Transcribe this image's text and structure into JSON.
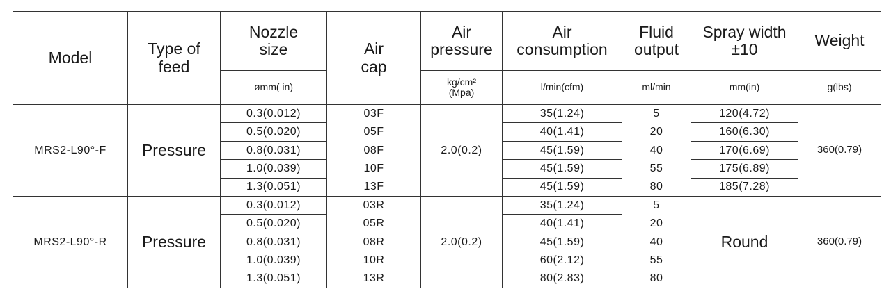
{
  "table": {
    "header": {
      "model": [
        "Model"
      ],
      "type_of_feed": [
        "Type of",
        "feed"
      ],
      "nozzle_size": [
        "Nozzle",
        "size"
      ],
      "air_cap": [
        "Air",
        "cap"
      ],
      "air_pressure": [
        "Air",
        "pressure"
      ],
      "air_consumption": [
        "Air",
        "consumption"
      ],
      "fluid_output": [
        "Fluid",
        "output"
      ],
      "spray_width": [
        "Spray width",
        "±10"
      ],
      "weight": [
        "Weight"
      ]
    },
    "units": {
      "nozzle_size": [
        "ømm( in)"
      ],
      "air_pressure": [
        "kg/cm²",
        "(Mpa)"
      ],
      "air_consumption": [
        "l/min(cfm)"
      ],
      "fluid_output": [
        "ml/min"
      ],
      "spray_width": [
        "mm(in)"
      ],
      "weight": [
        "g(lbs)"
      ]
    },
    "groups": [
      {
        "model": "MRS2-L90°-F",
        "feed": "Pressure",
        "air_pressure": "2.0(0.2)",
        "weight": "360(0.79)",
        "rows": [
          [
            "0.3(0.012)",
            "03F",
            "35(1.24)",
            "5",
            "120(4.72)"
          ],
          [
            "0.5(0.020)",
            "05F",
            "40(1.41)",
            "20",
            "160(6.30)"
          ],
          [
            "0.8(0.031)",
            "08F",
            "45(1.59)",
            "40",
            "170(6.69)"
          ],
          [
            "1.0(0.039)",
            "10F",
            "45(1.59)",
            "55",
            "175(6.89)"
          ],
          [
            "1.3(0.051)",
            "13F",
            "45(1.59)",
            "80",
            "185(7.28)"
          ]
        ]
      },
      {
        "model": "MRS2-L90°-R",
        "feed": "Pressure",
        "air_pressure": "2.0(0.2)",
        "weight": "360(0.79)",
        "spray_width": "Round",
        "rows": [
          [
            "0.3(0.012)",
            "03R",
            "35(1.24)",
            "5"
          ],
          [
            "0.5(0.020)",
            "05R",
            "40(1.41)",
            "20"
          ],
          [
            "0.8(0.031)",
            "08R",
            "45(1.59)",
            "40"
          ],
          [
            "1.0(0.039)",
            "10R",
            "60(2.12)",
            "55"
          ],
          [
            "1.3(0.051)",
            "13R",
            "80(2.83)",
            "80"
          ]
        ]
      }
    ]
  }
}
